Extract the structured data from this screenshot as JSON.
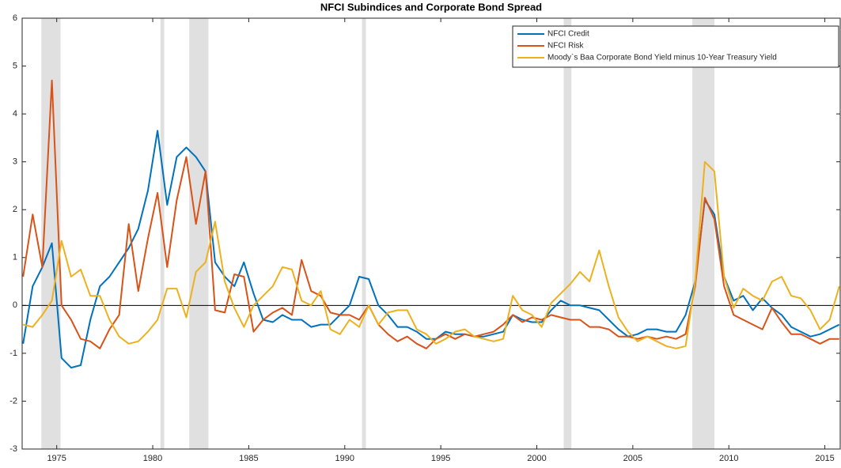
{
  "chart_data": {
    "type": "line",
    "title": "NFCI Subindices and Corporate Bond Spread",
    "x": [
      1973.25,
      1973.75,
      1974.25,
      1974.75,
      1975.25,
      1975.75,
      1976.25,
      1976.75,
      1977.25,
      1977.75,
      1978.25,
      1978.75,
      1979.25,
      1979.75,
      1980.25,
      1980.75,
      1981.25,
      1981.75,
      1982.25,
      1982.75,
      1983.25,
      1983.75,
      1984.25,
      1984.75,
      1985.25,
      1985.75,
      1986.25,
      1986.75,
      1987.25,
      1987.75,
      1988.25,
      1988.75,
      1989.25,
      1989.75,
      1990.25,
      1990.75,
      1991.25,
      1991.75,
      1992.25,
      1992.75,
      1993.25,
      1993.75,
      1994.25,
      1994.75,
      1995.25,
      1995.75,
      1996.25,
      1996.75,
      1997.25,
      1997.75,
      1998.25,
      1998.75,
      1999.25,
      1999.75,
      2000.25,
      2000.75,
      2001.25,
      2001.75,
      2002.25,
      2002.75,
      2003.25,
      2003.75,
      2004.25,
      2004.75,
      2005.25,
      2005.75,
      2006.25,
      2006.75,
      2007.25,
      2007.75,
      2008.25,
      2008.75,
      2009.25,
      2009.75,
      2010.25,
      2010.75,
      2011.25,
      2011.75,
      2012.25,
      2012.75,
      2013.25,
      2013.75,
      2014.25,
      2014.75,
      2015.25,
      2015.75
    ],
    "series": [
      {
        "name": "NFCI Credit",
        "color": "#0072bd",
        "values": [
          -0.8,
          0.4,
          0.8,
          1.3,
          -1.1,
          -1.3,
          -1.25,
          -0.3,
          0.4,
          0.6,
          0.9,
          1.2,
          1.6,
          2.4,
          3.65,
          2.1,
          3.1,
          3.3,
          3.1,
          2.8,
          0.9,
          0.6,
          0.4,
          0.9,
          0.25,
          -0.3,
          -0.35,
          -0.2,
          -0.3,
          -0.3,
          -0.45,
          -0.4,
          -0.4,
          -0.2,
          0.0,
          0.6,
          0.55,
          0.0,
          -0.2,
          -0.45,
          -0.45,
          -0.55,
          -0.7,
          -0.7,
          -0.55,
          -0.6,
          -0.6,
          -0.65,
          -0.65,
          -0.6,
          -0.55,
          -0.2,
          -0.3,
          -0.35,
          -0.35,
          -0.1,
          0.1,
          0.0,
          0.0,
          -0.05,
          -0.1,
          -0.3,
          -0.5,
          -0.65,
          -0.6,
          -0.5,
          -0.5,
          -0.55,
          -0.55,
          -0.2,
          0.5,
          2.2,
          1.9,
          0.6,
          0.1,
          0.2,
          -0.1,
          0.15,
          -0.05,
          -0.2,
          -0.45,
          -0.55,
          -0.65,
          -0.6,
          -0.5,
          -0.4
        ]
      },
      {
        "name": "NFCI Risk",
        "color": "#d95319",
        "values": [
          0.6,
          1.9,
          0.8,
          4.7,
          0.0,
          -0.3,
          -0.7,
          -0.75,
          -0.9,
          -0.5,
          -0.2,
          1.7,
          0.3,
          1.4,
          2.35,
          0.8,
          2.2,
          3.1,
          1.7,
          2.8,
          -0.1,
          -0.15,
          0.65,
          0.6,
          -0.55,
          -0.3,
          -0.15,
          -0.05,
          -0.2,
          0.95,
          0.3,
          0.2,
          -0.15,
          -0.2,
          -0.2,
          -0.3,
          0.0,
          -0.4,
          -0.6,
          -0.75,
          -0.65,
          -0.8,
          -0.9,
          -0.7,
          -0.6,
          -0.7,
          -0.6,
          -0.65,
          -0.6,
          -0.55,
          -0.4,
          -0.2,
          -0.35,
          -0.25,
          -0.3,
          -0.2,
          -0.25,
          -0.3,
          -0.3,
          -0.45,
          -0.45,
          -0.5,
          -0.65,
          -0.65,
          -0.7,
          -0.65,
          -0.7,
          -0.65,
          -0.7,
          -0.6,
          0.4,
          2.25,
          1.8,
          0.4,
          -0.2,
          -0.3,
          -0.4,
          -0.5,
          -0.05,
          -0.35,
          -0.6,
          -0.6,
          -0.7,
          -0.8,
          -0.7,
          -0.7
        ]
      },
      {
        "name": "Moody`s Baa Corporate Bond Yield minus 10-Year Treasury Yield",
        "color": "#edb120",
        "values": [
          -0.4,
          -0.45,
          -0.2,
          0.1,
          1.35,
          0.6,
          0.75,
          0.2,
          0.2,
          -0.3,
          -0.65,
          -0.8,
          -0.75,
          -0.55,
          -0.3,
          0.35,
          0.35,
          -0.25,
          0.7,
          0.9,
          1.75,
          0.5,
          -0.05,
          -0.45,
          0.0,
          0.2,
          0.4,
          0.8,
          0.75,
          0.1,
          0.0,
          0.3,
          -0.5,
          -0.6,
          -0.3,
          -0.45,
          0.0,
          -0.4,
          -0.15,
          -0.1,
          -0.1,
          -0.5,
          -0.6,
          -0.8,
          -0.7,
          -0.55,
          -0.5,
          -0.65,
          -0.7,
          -0.75,
          -0.7,
          0.2,
          -0.1,
          -0.2,
          -0.45,
          0.05,
          0.25,
          0.45,
          0.7,
          0.5,
          1.15,
          0.4,
          -0.25,
          -0.55,
          -0.75,
          -0.65,
          -0.75,
          -0.85,
          -0.9,
          -0.85,
          0.5,
          3.0,
          2.8,
          0.6,
          -0.05,
          0.35,
          0.2,
          0.1,
          0.5,
          0.6,
          0.2,
          0.15,
          -0.1,
          -0.5,
          -0.3,
          0.4
        ]
      }
    ],
    "recession_periods": [
      [
        1974.2,
        1975.2
      ],
      [
        1980.4,
        1980.6
      ],
      [
        1981.9,
        1982.9
      ],
      [
        1990.9,
        1991.1
      ],
      [
        2001.4,
        2001.8
      ],
      [
        2008.1,
        2009.25
      ]
    ],
    "shade_color": "#e0e0e0",
    "xlim": [
      1973.2,
      2015.8
    ],
    "xticks": [
      1975,
      1980,
      1985,
      1990,
      1995,
      2000,
      2005,
      2010,
      2015
    ],
    "ylim": [
      -3,
      6
    ],
    "yticks": [
      -3,
      -2,
      -1,
      0,
      1,
      2,
      3,
      4,
      5,
      6
    ],
    "zero_line": true,
    "legend": "top-right"
  }
}
